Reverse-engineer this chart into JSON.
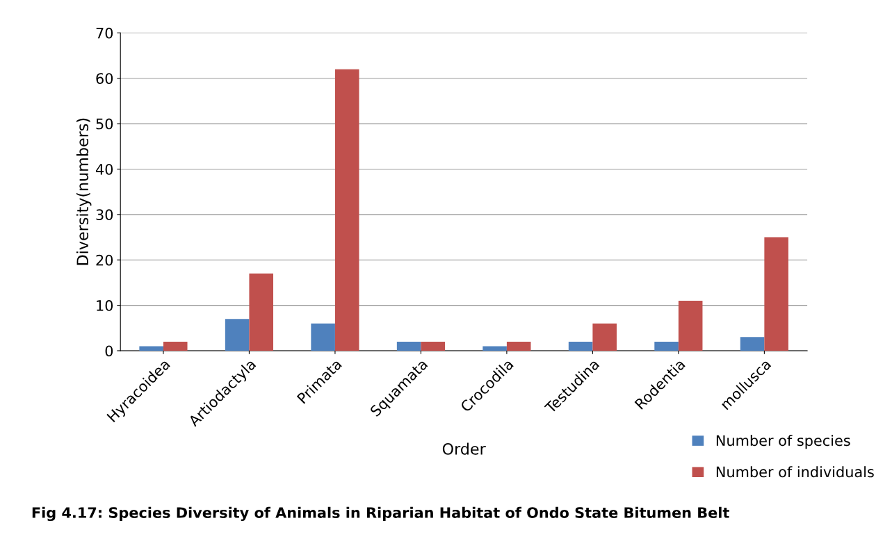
{
  "chart_data": {
    "type": "bar",
    "xlabel": "Order",
    "ylabel": "Diversity(numbers)",
    "categories": [
      "Hyracoidea",
      "Artiodactyla",
      "Primata",
      "Squamata",
      "Crocodila",
      "Testudina",
      "Rodentia",
      "mollusca"
    ],
    "series": [
      {
        "name": "Number of species",
        "color": "#4f81bd",
        "values": [
          1,
          7,
          6,
          2,
          1,
          2,
          2,
          3
        ]
      },
      {
        "name": "Number of individuals",
        "color": "#c0504d",
        "values": [
          2,
          17,
          62,
          2,
          2,
          6,
          11,
          25
        ]
      }
    ],
    "ylim": [
      0,
      70
    ],
    "yticks": [
      0,
      10,
      20,
      30,
      40,
      50,
      60,
      70
    ],
    "grid": "y",
    "legend": "bottom right",
    "annotations": [
      "Fig 4.17: Species Diversity of Animals in Riparian Habitat of Ondo State Bitumen Belt"
    ]
  }
}
